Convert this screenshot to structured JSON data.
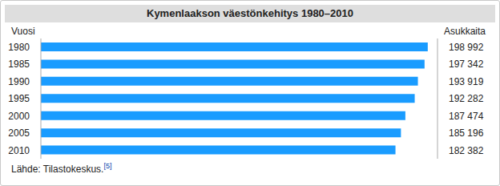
{
  "chart_data": {
    "type": "bar",
    "title": "Kymenlaakson väestönkehitys 1980–2010",
    "category_label": "Vuosi",
    "value_label": "Asukkaita",
    "categories": [
      "1980",
      "1985",
      "1990",
      "1995",
      "2000",
      "2005",
      "2010"
    ],
    "values": [
      198992,
      197342,
      193919,
      192282,
      187474,
      185196,
      182382
    ],
    "value_labels": [
      "198 992",
      "197 342",
      "193 919",
      "192 282",
      "187 474",
      "185 196",
      "182 382"
    ],
    "data_labels": true,
    "color": "#1a9cff",
    "orientation": "horizontal",
    "xlim": [
      0,
      204000
    ],
    "tick_labels": "y",
    "grid": false,
    "source": "Lähde: Tilastokeskus.",
    "source_ref": "[5]"
  }
}
